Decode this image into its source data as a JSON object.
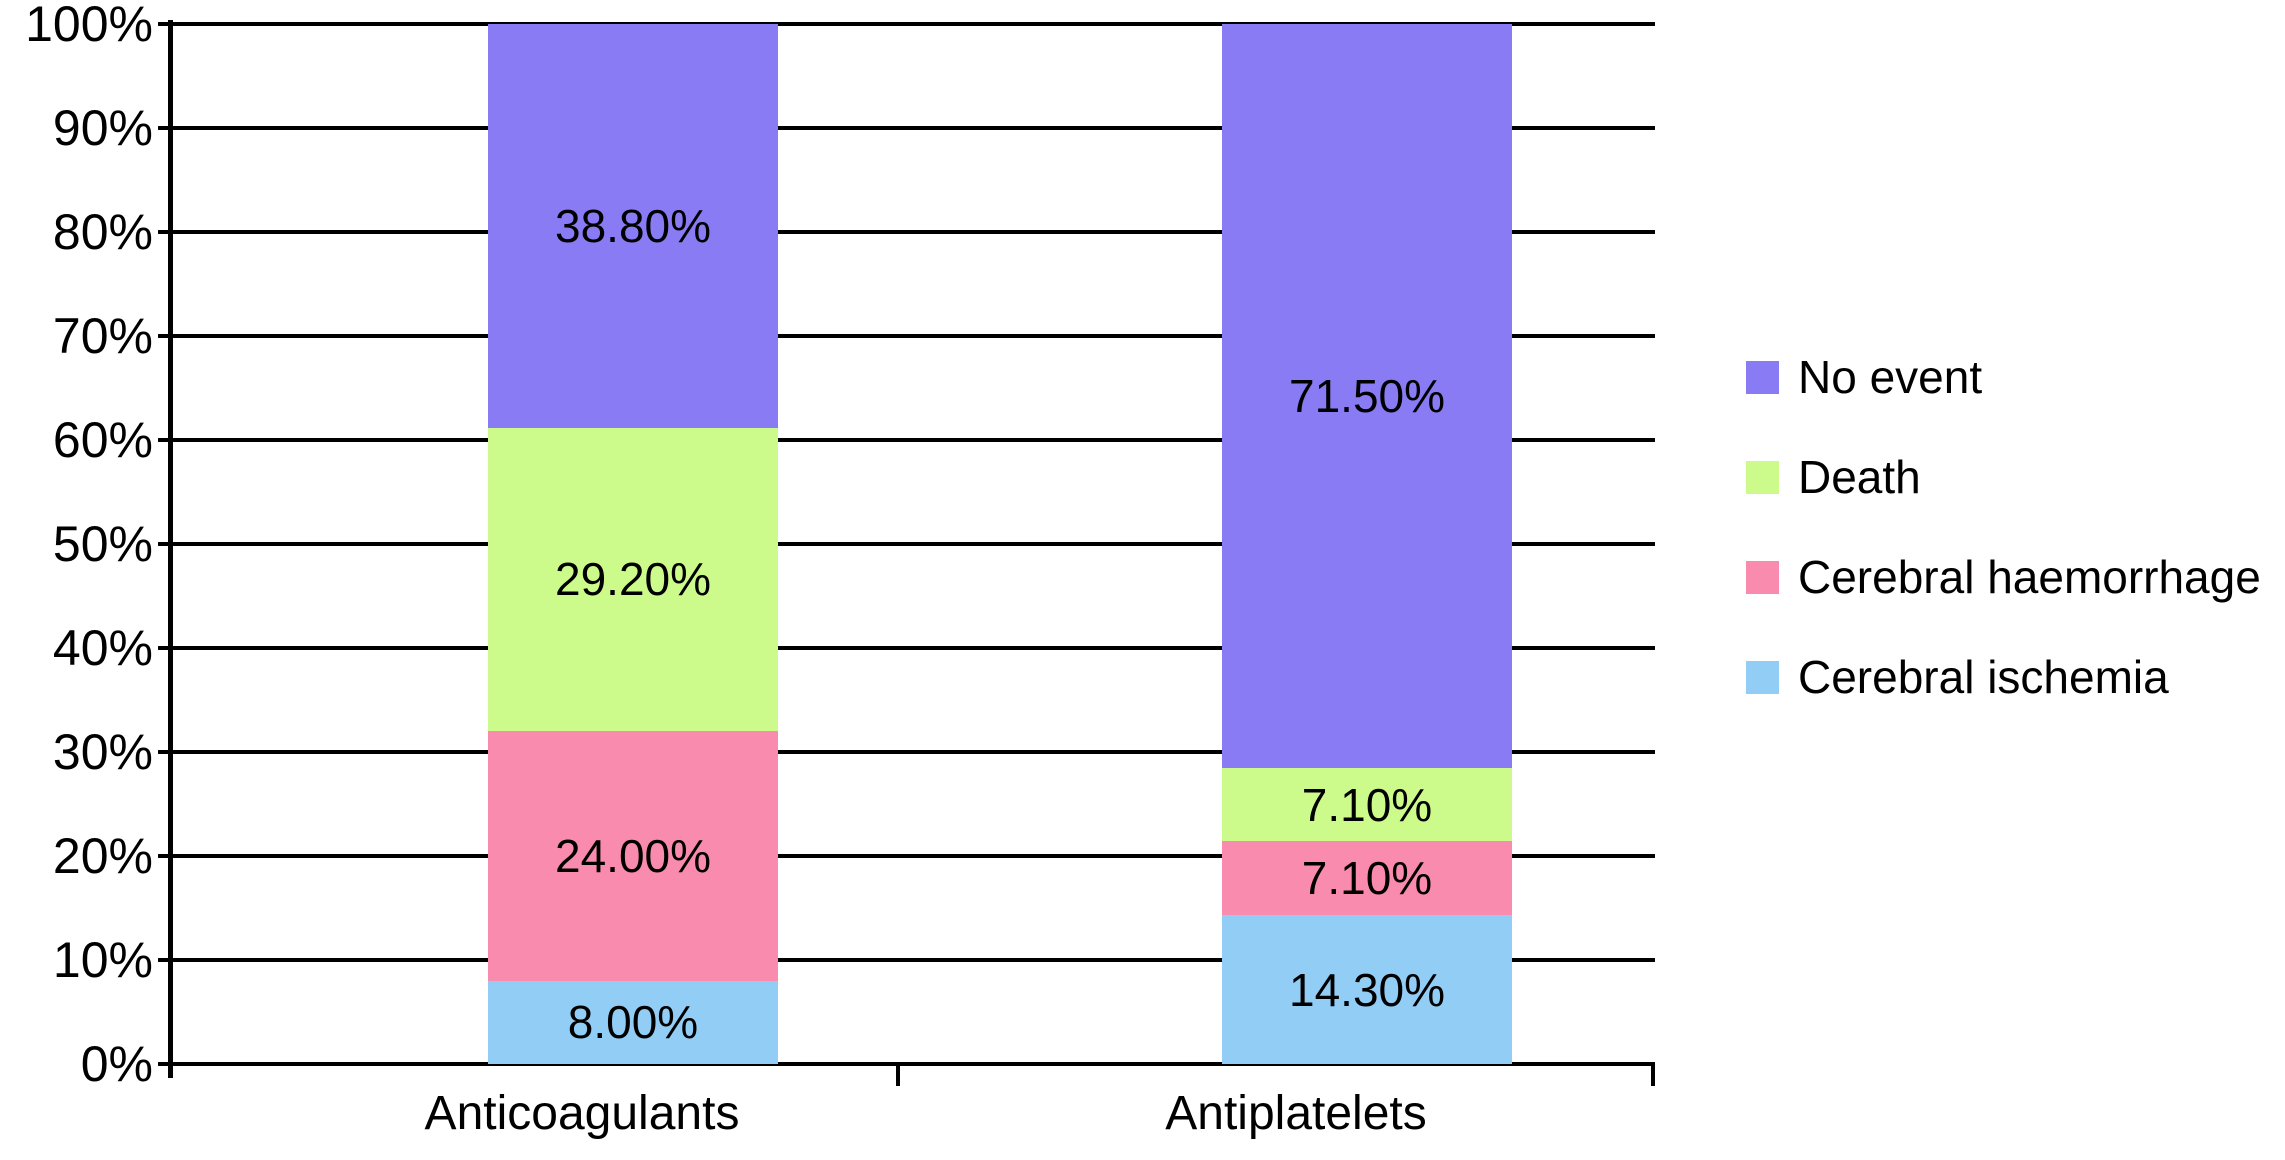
{
  "chart_data": {
    "type": "bar",
    "variant": "stacked-100-percent-column",
    "title": "",
    "xlabel": "",
    "ylabel": "",
    "grid": true,
    "legend_position": "right",
    "categories": [
      "Anticoagulants",
      "Antiplatelets"
    ],
    "series": [
      {
        "name": "No event",
        "color": "#897BF4",
        "values": [
          38.8,
          71.5
        ],
        "labels": [
          "38.80%",
          "71.50%"
        ]
      },
      {
        "name": "Death",
        "color": "#CCFB8B",
        "values": [
          29.2,
          7.1
        ],
        "labels": [
          "29.20%",
          "7.10%"
        ]
      },
      {
        "name": "Cerebral haemorrhage",
        "color": "#F98BAE",
        "values": [
          24.0,
          7.1
        ],
        "labels": [
          "24.00%",
          "7.10%"
        ]
      },
      {
        "name": "Cerebral ischemia",
        "color": "#92CDF5",
        "values": [
          8.0,
          14.3
        ],
        "labels": [
          "8.00%",
          "14.30%"
        ]
      }
    ],
    "y_axis": {
      "min": 0,
      "max": 100,
      "tick_step": 10,
      "tick_labels": [
        "0%",
        "10%",
        "20%",
        "30%",
        "40%",
        "50%",
        "60%",
        "70%",
        "80%",
        "90%",
        "100%"
      ]
    },
    "colors": {
      "axis": "#000000",
      "gridline": "#000000",
      "label_text": "#000000",
      "background": "#FFFFFF"
    }
  }
}
